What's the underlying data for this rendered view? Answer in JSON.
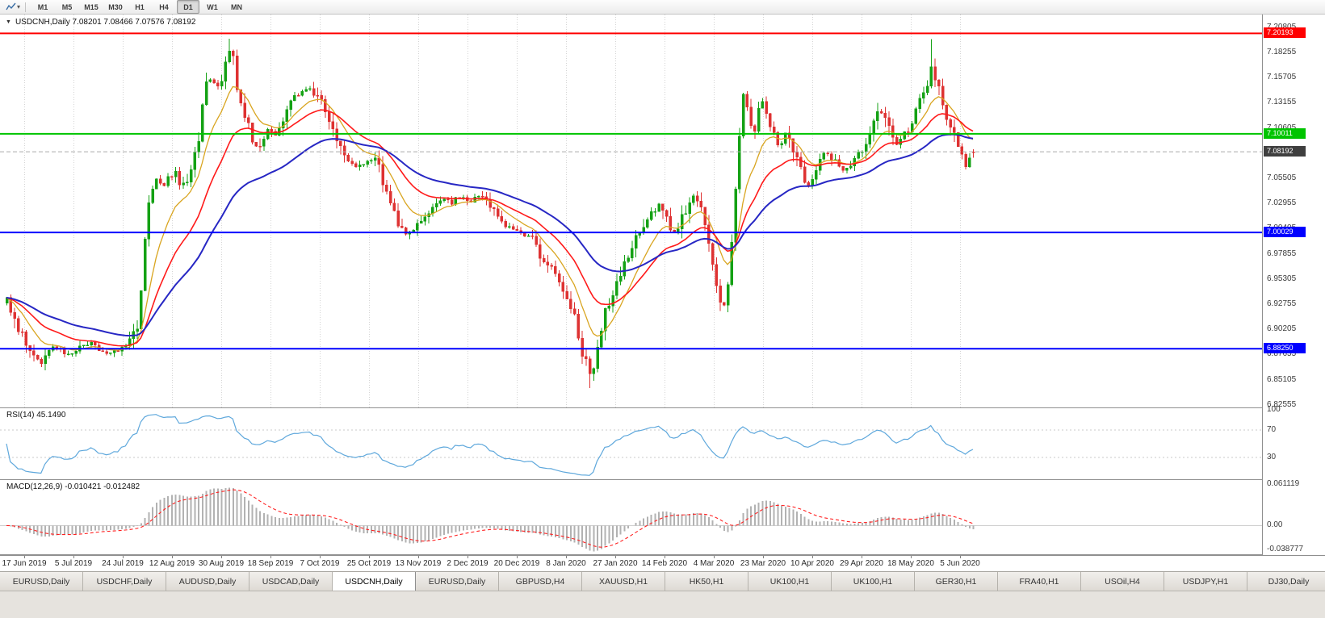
{
  "toolbar": {
    "chart_tool_icon": "chart-cursor-icon",
    "dropdown_icon": "chevron-down-icon",
    "timeframes": [
      "M1",
      "M5",
      "M15",
      "M30",
      "H1",
      "H4",
      "D1",
      "W1",
      "MN"
    ],
    "active_timeframe": "D1"
  },
  "chart": {
    "title": "USDCNH,Daily",
    "title_line": "USDCNH,Daily 7.08201 7.08466 7.07576 7.08192",
    "collapse_icon": "collapse-triangle-icon",
    "price_axis_labels": [
      "7.20805",
      "7.18255",
      "7.15705",
      "7.13155",
      "7.10605",
      "7.08055",
      "7.05505",
      "7.02955",
      "7.00405",
      "6.97855",
      "6.95305",
      "6.92755",
      "6.90205",
      "6.87655",
      "6.85105",
      "6.82555"
    ],
    "levels": [
      {
        "label": "7.20193",
        "value": 7.20193,
        "color": "#FF0000"
      },
      {
        "label": "7.10011",
        "value": 7.10011,
        "color": "#00C400"
      },
      {
        "label": "7.00029",
        "value": 7.00029,
        "color": "#0000FF"
      },
      {
        "label": "6.88250",
        "value": 6.8825,
        "color": "#0000FF"
      }
    ],
    "current_price": {
      "label": "7.08192",
      "value": 7.08192,
      "badge_color": "#3F3F3F",
      "line_color": "#ABABAB"
    },
    "dates": [
      "17 Jun 2019",
      "5 Jul 2019",
      "24 Jul 2019",
      "12 Aug 2019",
      "30 Aug 2019",
      "18 Sep 2019",
      "7 Oct 2019",
      "25 Oct 2019",
      "13 Nov 2019",
      "2 Dec 2019",
      "20 Dec 2019",
      "8 Jan 2020",
      "27 Jan 2020",
      "14 Feb 2020",
      "4 Mar 2020",
      "23 Mar 2020",
      "10 Apr 2020",
      "29 Apr 2020",
      "18 May 2020",
      "5 Jun 2020"
    ],
    "colors": {
      "up": "#14A114",
      "down": "#DE3232",
      "ma_fast_gold": "#D9A520",
      "ma_mid_red": "#FF1A1A",
      "ma_slow_blue": "#2727C4",
      "grid": "#D4D4D4"
    }
  },
  "indicators": {
    "rsi": {
      "title_line": "RSI(14) 45.1490",
      "value": "45.1490",
      "axis_labels": [
        "100",
        "70",
        "30"
      ],
      "axis_values": [
        100,
        70,
        30
      ],
      "level_lines": [
        70,
        30
      ],
      "line_color": "#5FA8DC"
    },
    "macd": {
      "title_line": "MACD(12,26,9) -0.010421 -0.012482",
      "value_main": "-0.010421",
      "value_signal": "-0.012482",
      "axis_labels": [
        "0.061119",
        "0.00",
        "-0.038777"
      ],
      "axis_values": [
        0.061119,
        0,
        -0.038777
      ],
      "histogram_color": "#B2B2B2",
      "signal_color": "#FF2020"
    }
  },
  "tabs": {
    "active_index": 4,
    "items": [
      "EURUSD,Daily",
      "USDCHF,Daily",
      "AUDUSD,Daily",
      "USDCAD,Daily",
      "USDCNH,Daily",
      "EURUSD,Daily",
      "GBPUSD,H4",
      "XAUUSD,H1",
      "HK50,H1",
      "UK100,H1",
      "UK100,H1",
      "GER30,H1",
      "FRA40,H1",
      "USOil,H4",
      "USDJPY,H1",
      "DJ30,Daily"
    ]
  },
  "chart_data": {
    "type": "candlestick",
    "symbol": "USDCNH",
    "timeframe": "Daily",
    "x_range": [
      "17 Jun 2019",
      "5 Jun 2020"
    ],
    "y_range": [
      6.823,
      7.221
    ],
    "last_ohlc": {
      "open": 7.08201,
      "high": 7.08466,
      "low": 7.07576,
      "close": 7.08192
    },
    "horizontal_levels": [
      7.20193,
      7.10011,
      7.00029,
      6.8825
    ],
    "overlays": [
      "fast MA (gold)",
      "mid MA (red)",
      "slow MA (blue)"
    ],
    "indicators": [
      {
        "name": "RSI(14)",
        "last": 45.149,
        "levels": [
          70,
          30
        ]
      },
      {
        "name": "MACD(12,26,9)",
        "last_main": -0.010421,
        "last_signal": -0.012482,
        "scale": [
          -0.038777,
          0.061119
        ]
      }
    ],
    "extremes": {
      "highs": [
        [
          284,
          7.1965
        ],
        [
          1154,
          7.1962
        ]
      ],
      "lows": [
        [
          730,
          6.8428
        ]
      ]
    },
    "price_path_anchors": [
      [
        8,
        6.932
      ],
      [
        18,
        6.912
      ],
      [
        30,
        6.888
      ],
      [
        42,
        6.874
      ],
      [
        52,
        6.868
      ],
      [
        62,
        6.884
      ],
      [
        75,
        6.88
      ],
      [
        88,
        6.876
      ],
      [
        100,
        6.884
      ],
      [
        112,
        6.889
      ],
      [
        124,
        6.882
      ],
      [
        136,
        6.878
      ],
      [
        150,
        6.884
      ],
      [
        160,
        6.889
      ],
      [
        170,
        6.905
      ],
      [
        176,
        6.96
      ],
      [
        180,
        7.01
      ],
      [
        186,
        7.046
      ],
      [
        194,
        7.058
      ],
      [
        202,
        7.048
      ],
      [
        210,
        7.056
      ],
      [
        216,
        7.062
      ],
      [
        222,
        7.045
      ],
      [
        230,
        7.052
      ],
      [
        238,
        7.065
      ],
      [
        246,
        7.1
      ],
      [
        252,
        7.14
      ],
      [
        258,
        7.158
      ],
      [
        264,
        7.15
      ],
      [
        271,
        7.145
      ],
      [
        277,
        7.162
      ],
      [
        283,
        7.186
      ],
      [
        287,
        7.18
      ],
      [
        292,
        7.155
      ],
      [
        298,
        7.128
      ],
      [
        305,
        7.112
      ],
      [
        312,
        7.092
      ],
      [
        318,
        7.085
      ],
      [
        325,
        7.098
      ],
      [
        332,
        7.108
      ],
      [
        340,
        7.096
      ],
      [
        348,
        7.112
      ],
      [
        356,
        7.128
      ],
      [
        364,
        7.136
      ],
      [
        372,
        7.142
      ],
      [
        381,
        7.147
      ],
      [
        390,
        7.14
      ],
      [
        400,
        7.126
      ],
      [
        410,
        7.104
      ],
      [
        420,
        7.086
      ],
      [
        430,
        7.072
      ],
      [
        442,
        7.067
      ],
      [
        452,
        7.072
      ],
      [
        462,
        7.076
      ],
      [
        472,
        7.058
      ],
      [
        482,
        7.032
      ],
      [
        492,
        7.012
      ],
      [
        503,
        6.997
      ],
      [
        513,
        7.004
      ],
      [
        523,
        7.012
      ],
      [
        534,
        7.024
      ],
      [
        546,
        7.034
      ],
      [
        558,
        7.03
      ],
      [
        570,
        7.038
      ],
      [
        583,
        7.031
      ],
      [
        594,
        7.04
      ],
      [
        605,
        7.029
      ],
      [
        617,
        7.014
      ],
      [
        631,
        7.004
      ],
      [
        645,
        7.001
      ],
      [
        658,
        6.994
      ],
      [
        670,
        6.976
      ],
      [
        682,
        6.962
      ],
      [
        694,
        6.95
      ],
      [
        705,
        6.932
      ],
      [
        714,
        6.902
      ],
      [
        722,
        6.872
      ],
      [
        730,
        6.858
      ],
      [
        737,
        6.872
      ],
      [
        744,
        6.902
      ],
      [
        752,
        6.928
      ],
      [
        760,
        6.944
      ],
      [
        767,
        6.957
      ],
      [
        776,
        6.974
      ],
      [
        786,
        6.992
      ],
      [
        796,
        7.008
      ],
      [
        806,
        7.02
      ],
      [
        815,
        7.028
      ],
      [
        824,
        7.016
      ],
      [
        833,
        6.999
      ],
      [
        842,
        7.009
      ],
      [
        852,
        7.028
      ],
      [
        860,
        7.039
      ],
      [
        868,
        7.022
      ],
      [
        876,
        6.993
      ],
      [
        884,
        6.96
      ],
      [
        890,
        6.936
      ],
      [
        896,
        6.928
      ],
      [
        902,
        6.952
      ],
      [
        907,
        6.995
      ],
      [
        912,
        7.062
      ],
      [
        917,
        7.118
      ],
      [
        921,
        7.148
      ],
      [
        926,
        7.122
      ],
      [
        932,
        7.096
      ],
      [
        938,
        7.118
      ],
      [
        944,
        7.134
      ],
      [
        950,
        7.119
      ],
      [
        957,
        7.097
      ],
      [
        964,
        7.087
      ],
      [
        971,
        7.104
      ],
      [
        979,
        7.091
      ],
      [
        987,
        7.076
      ],
      [
        995,
        7.058
      ],
      [
        1003,
        7.046
      ],
      [
        1012,
        7.066
      ],
      [
        1021,
        7.081
      ],
      [
        1031,
        7.074
      ],
      [
        1041,
        7.061
      ],
      [
        1051,
        7.069
      ],
      [
        1062,
        7.081
      ],
      [
        1073,
        7.091
      ],
      [
        1081,
        7.108
      ],
      [
        1088,
        7.128
      ],
      [
        1095,
        7.117
      ],
      [
        1103,
        7.099
      ],
      [
        1110,
        7.088
      ],
      [
        1118,
        7.097
      ],
      [
        1126,
        7.108
      ],
      [
        1135,
        7.124
      ],
      [
        1142,
        7.137
      ],
      [
        1148,
        7.152
      ],
      [
        1154,
        7.168
      ],
      [
        1160,
        7.154
      ],
      [
        1166,
        7.131
      ],
      [
        1172,
        7.117
      ],
      [
        1178,
        7.104
      ],
      [
        1184,
        7.09
      ],
      [
        1190,
        7.077
      ],
      [
        1196,
        7.066
      ],
      [
        1201,
        7.076
      ],
      [
        1206,
        7.082
      ]
    ]
  }
}
